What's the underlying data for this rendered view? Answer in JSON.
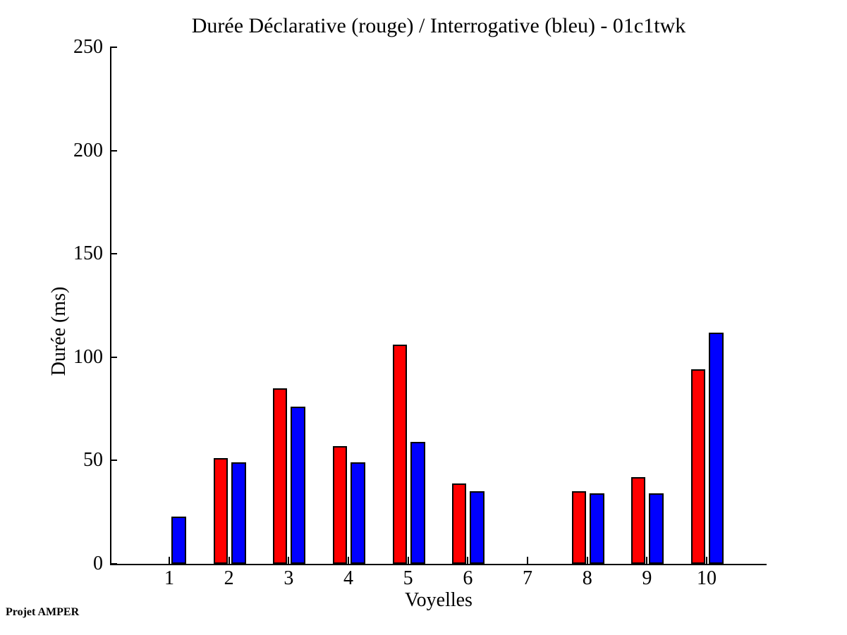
{
  "chart_data": {
    "type": "bar",
    "title": "Durée Déclarative (rouge) / Interrogative (bleu) - 01c1twk",
    "xlabel": "Voyelles",
    "ylabel": "Durée (ms)",
    "footer": "Projet AMPER",
    "categories": [
      "1",
      "2",
      "3",
      "4",
      "5",
      "6",
      "7",
      "8",
      "9",
      "10"
    ],
    "series": [
      {
        "name": "Déclarative",
        "color": "#ff0000",
        "values": [
          0,
          51,
          85,
          57,
          106,
          39,
          0,
          35,
          42,
          94
        ]
      },
      {
        "name": "Interrogative",
        "color": "#0000ff",
        "values": [
          23,
          49,
          76,
          49,
          59,
          35,
          0,
          34,
          34,
          112
        ]
      }
    ],
    "ylim": [
      0,
      250
    ],
    "yticks": [
      0,
      50,
      100,
      150,
      200,
      250
    ],
    "grid": false,
    "legend_position": "none",
    "bar_edge_color": "#000000",
    "axis_color": "#000000",
    "background_color": "#ffffff"
  }
}
